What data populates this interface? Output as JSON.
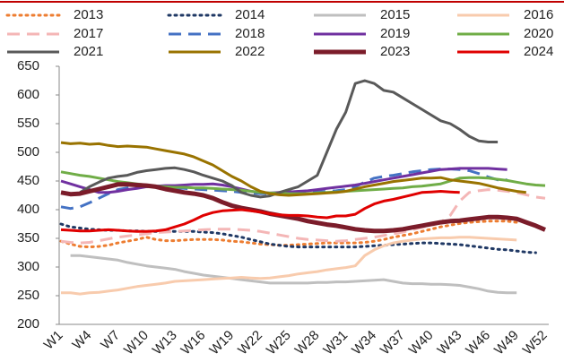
{
  "chart_data": {
    "type": "line",
    "categories": [
      "W1",
      null,
      null,
      "W4",
      null,
      null,
      "W7",
      null,
      null,
      "W10",
      null,
      null,
      "W13",
      null,
      null,
      "W16",
      null,
      null,
      "W19",
      null,
      null,
      "W22",
      null,
      null,
      "W25",
      null,
      null,
      "W28",
      null,
      null,
      "W31",
      null,
      null,
      "W34",
      null,
      null,
      "W37",
      null,
      null,
      "W40",
      null,
      null,
      "W43",
      null,
      null,
      "W46",
      null,
      null,
      "W49",
      null,
      null,
      "W52"
    ],
    "ylim": [
      200,
      650
    ],
    "yticks": [
      200,
      250,
      300,
      350,
      400,
      450,
      500,
      550,
      600,
      650
    ],
    "series": [
      {
        "name": "2013",
        "color": "#ed7d31",
        "dash": "dotted",
        "width": 3,
        "values": [
          345,
          340,
          336,
          335,
          336,
          338,
          342,
          345,
          348,
          352,
          348,
          346,
          346,
          347,
          348,
          348,
          348,
          347,
          345,
          344,
          342,
          340,
          339,
          338,
          338,
          339,
          340,
          341,
          342,
          342,
          342,
          342,
          343,
          345,
          348,
          352,
          355,
          358,
          362,
          366,
          370,
          373,
          376,
          378,
          379,
          380,
          380,
          380,
          378,
          null,
          null,
          null
        ]
      },
      {
        "name": "2014",
        "color": "#1f3864",
        "dash": "dotted",
        "width": 3,
        "values": [
          375,
          370,
          368,
          366,
          365,
          364,
          364,
          363,
          363,
          362,
          362,
          362,
          362,
          362,
          362,
          361,
          360,
          358,
          355,
          352,
          348,
          344,
          340,
          338,
          336,
          335,
          335,
          335,
          335,
          335,
          335,
          335,
          336,
          337,
          338,
          339,
          340,
          341,
          342,
          342,
          341,
          340,
          339,
          337,
          335,
          333,
          331,
          330,
          328,
          326,
          325,
          null
        ]
      },
      {
        "name": "2015",
        "color": "#bfbfbf",
        "dash": "solid",
        "width": 3,
        "values": [
          null,
          320,
          320,
          318,
          316,
          314,
          312,
          308,
          305,
          302,
          300,
          298,
          296,
          292,
          289,
          286,
          284,
          282,
          280,
          278,
          276,
          274,
          272,
          272,
          272,
          272,
          272,
          273,
          273,
          274,
          274,
          275,
          276,
          277,
          278,
          275,
          272,
          271,
          271,
          270,
          270,
          269,
          268,
          265,
          262,
          258,
          256,
          255,
          255,
          null,
          null,
          null
        ]
      },
      {
        "name": "2016",
        "color": "#f8cbad",
        "dash": "solid",
        "width": 3,
        "values": [
          255,
          255,
          253,
          255,
          256,
          258,
          260,
          263,
          266,
          268,
          270,
          272,
          275,
          276,
          277,
          278,
          279,
          280,
          281,
          282,
          281,
          280,
          281,
          283,
          285,
          288,
          290,
          292,
          295,
          297,
          299,
          302,
          320,
          330,
          337,
          342,
          345,
          347,
          349,
          350,
          351,
          351,
          352,
          352,
          351,
          350,
          349,
          348,
          347,
          null,
          null,
          null
        ]
      },
      {
        "name": "2017",
        "color": "#f4b6b6",
        "dash": "dashed",
        "width": 3,
        "values": [
          345,
          343,
          342,
          343,
          346,
          349,
          352,
          354,
          356,
          358,
          360,
          361,
          362,
          363,
          364,
          365,
          366,
          366,
          366,
          365,
          364,
          362,
          359,
          356,
          353,
          350,
          348,
          347,
          346,
          345,
          346,
          348,
          350,
          352,
          355,
          358,
          361,
          365,
          369,
          373,
          378,
          390,
          415,
          430,
          433,
          435,
          434,
          432,
          430,
          426,
          422,
          420
        ]
      },
      {
        "name": "2018",
        "color": "#4472c4",
        "dash": "dashed",
        "width": 3,
        "values": [
          405,
          402,
          405,
          412,
          420,
          428,
          435,
          438,
          440,
          440,
          440,
          439,
          438,
          437,
          436,
          435,
          434,
          433,
          432,
          430,
          429,
          428,
          428,
          429,
          430,
          430,
          431,
          431,
          432,
          433,
          435,
          440,
          448,
          455,
          458,
          460,
          463,
          466,
          468,
          470,
          471,
          471,
          470,
          468,
          463,
          457,
          452,
          452,
          null,
          null,
          null,
          null
        ]
      },
      {
        "name": "2019",
        "color": "#7030a0",
        "dash": "solid",
        "width": 3,
        "values": [
          450,
          445,
          440,
          435,
          430,
          430,
          432,
          435,
          437,
          440,
          441,
          442,
          442,
          443,
          444,
          444,
          445,
          443,
          440,
          436,
          432,
          430,
          429,
          430,
          431,
          432,
          433,
          435,
          437,
          439,
          441,
          443,
          446,
          449,
          452,
          455,
          458,
          461,
          464,
          467,
          470,
          471,
          472,
          472,
          472,
          472,
          471,
          470,
          null,
          null,
          null,
          null
        ]
      },
      {
        "name": "2020",
        "color": "#70ad47",
        "dash": "solid",
        "width": 3,
        "values": [
          466,
          463,
          460,
          458,
          455,
          452,
          449,
          447,
          445,
          443,
          441,
          440,
          439,
          439,
          438,
          438,
          437,
          436,
          435,
          434,
          432,
          430,
          429,
          429,
          428,
          428,
          428,
          429,
          430,
          431,
          432,
          433,
          434,
          435,
          436,
          437,
          438,
          440,
          441,
          443,
          445,
          450,
          455,
          456,
          456,
          455,
          453,
          451,
          448,
          445,
          443,
          442
        ]
      },
      {
        "name": "2021",
        "color": "#595959",
        "dash": "solid",
        "width": 3,
        "values": [
          null,
          null,
          430,
          440,
          448,
          455,
          458,
          460,
          465,
          468,
          470,
          472,
          473,
          470,
          466,
          460,
          455,
          450,
          442,
          430,
          425,
          422,
          424,
          430,
          435,
          440,
          450,
          460,
          500,
          540,
          570,
          620,
          625,
          620,
          608,
          605,
          595,
          585,
          575,
          565,
          555,
          550,
          540,
          528,
          520,
          518,
          518,
          null,
          null,
          null,
          null,
          null
        ]
      },
      {
        "name": "2022",
        "color": "#997300",
        "dash": "solid",
        "width": 3,
        "values": [
          517,
          515,
          516,
          514,
          515,
          512,
          510,
          511,
          510,
          509,
          506,
          503,
          500,
          497,
          492,
          485,
          478,
          468,
          458,
          450,
          440,
          432,
          428,
          426,
          425,
          426,
          427,
          428,
          429,
          430,
          432,
          436,
          440,
          443,
          446,
          449,
          451,
          453,
          455,
          455,
          456,
          452,
          450,
          448,
          446,
          442,
          438,
          435,
          432,
          430,
          null,
          null
        ]
      },
      {
        "name": "2023",
        "color": "#7b1c2a",
        "dash": "solid",
        "width": 5,
        "values": [
          430,
          427,
          428,
          432,
          436,
          440,
          444,
          444,
          443,
          442,
          440,
          436,
          433,
          430,
          428,
          425,
          420,
          413,
          407,
          403,
          400,
          397,
          393,
          390,
          387,
          384,
          380,
          377,
          374,
          372,
          369,
          366,
          364,
          363,
          363,
          364,
          366,
          369,
          372,
          375,
          378,
          380,
          381,
          383,
          385,
          387,
          387,
          386,
          384,
          378,
          372,
          365
        ]
      },
      {
        "name": "2024",
        "color": "#e00000",
        "dash": "solid",
        "width": 3,
        "values": [
          365,
          364,
          363,
          363,
          364,
          365,
          364,
          363,
          362,
          362,
          363,
          365,
          370,
          375,
          382,
          390,
          395,
          398,
          399,
          400,
          398,
          396,
          393,
          391,
          390,
          390,
          389,
          387,
          386,
          389,
          389,
          392,
          402,
          410,
          415,
          418,
          422,
          426,
          430,
          431,
          432,
          431,
          430,
          null,
          null,
          null,
          null,
          null,
          null,
          null,
          null,
          null
        ]
      }
    ]
  }
}
